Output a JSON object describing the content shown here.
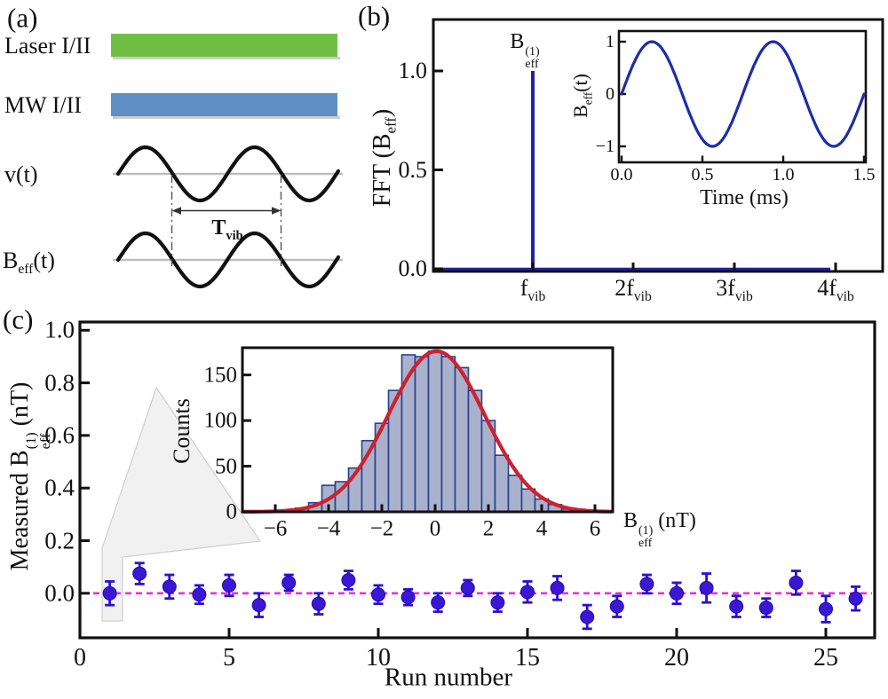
{
  "panel_a": {
    "label": "(a)",
    "rows": [
      {
        "label": "Laser I/II",
        "bar_color": "#6fbf45"
      },
      {
        "label": "MW I/II",
        "bar_color": "#5e8fc7"
      },
      {
        "label_parts": [
          {
            "t": "v(t)"
          }
        ]
      },
      {
        "label_parts": [
          {
            "t": "B"
          },
          {
            "sub": "eff"
          },
          {
            "t": "(t)"
          }
        ]
      }
    ],
    "period_label_parts": [
      {
        "t": "T"
      },
      {
        "sub": "vib"
      }
    ],
    "wave_color": "#111111",
    "baseline_color": "#bdbdbd"
  },
  "panel_b": {
    "label": "(b)",
    "ylabel_parts": [
      {
        "t": "FFT (B"
      },
      {
        "sub": "eff"
      },
      {
        "t": ")"
      }
    ],
    "ytick_labels": [
      "0.0",
      "0.5",
      "1.0"
    ],
    "peak_label_parts": [
      {
        "t": "B"
      },
      {
        "stack": {
          "sup": "(1)",
          "sub": "eff"
        }
      }
    ],
    "xtick_parts": [
      [
        {
          "t": "f"
        },
        {
          "sub": "vib"
        }
      ],
      [
        {
          "t": "2f"
        },
        {
          "sub": "vib"
        }
      ],
      [
        {
          "t": "3f"
        },
        {
          "sub": "vib"
        }
      ],
      [
        {
          "t": "4f"
        },
        {
          "sub": "vib"
        }
      ]
    ],
    "inset": {
      "ylabel_parts": [
        {
          "t": "B"
        },
        {
          "sub": "eff"
        },
        {
          "t": "(t)"
        }
      ],
      "ytick_labels": [
        "−1",
        "0",
        "1"
      ],
      "xtick_labels": [
        "0.0",
        "0.5",
        "1.0",
        "1.5"
      ],
      "xlabel": "Time (ms)"
    }
  },
  "panel_c": {
    "label": "(c)",
    "ylabel_parts": [
      {
        "t": "Measured B"
      },
      {
        "stack": {
          "sup": "(1)",
          "sub": "eff"
        }
      },
      {
        "t": " (nT)"
      }
    ],
    "ytick_labels": [
      "0.0",
      "0.2",
      "0.4",
      "0.6",
      "0.8",
      "1.0"
    ],
    "xtick_labels": [
      "0",
      "5",
      "10",
      "15",
      "20",
      "25"
    ],
    "xlabel": "Run number",
    "inset": {
      "ylabel": "Counts",
      "ytick_labels": [
        "0",
        "50",
        "100",
        "150"
      ],
      "xtick_labels": [
        "−6",
        "−4",
        "−2",
        "0",
        "2",
        "4",
        "6"
      ],
      "xlabel_parts": [
        {
          "t": "B"
        },
        {
          "stack": {
            "sup": "(1)",
            "sub": "eff"
          }
        },
        {
          "t": " (nT)"
        }
      ]
    }
  },
  "chart_data": [
    {
      "id": "fft-spectrum",
      "type": "line",
      "ylabel": "FFT (B_eff)",
      "yticks": [
        0.0,
        0.5,
        1.0
      ],
      "xtick_labels": [
        "f_vib",
        "2f_vib",
        "3f_vib",
        "4f_vib"
      ],
      "ylim": [
        0,
        1.25
      ],
      "series": [
        {
          "name": "FFT amplitude",
          "description": "flat baseline at 0 with a single sharp peak at f_vib",
          "peak_x": "f_vib",
          "peak_height": 1.0,
          "baseline": 0.0
        }
      ],
      "annotations": [
        "B_eff^(1) above the peak at f_vib"
      ],
      "line_color": "#2121aa"
    },
    {
      "id": "beff-time-inset",
      "type": "line",
      "xlabel": "Time (ms)",
      "ylabel": "B_eff(t)",
      "xticks": [
        0.0,
        0.5,
        1.0,
        1.5
      ],
      "yticks": [
        -1,
        0,
        1
      ],
      "xlim": [
        0,
        1.5
      ],
      "ylim": [
        -1.15,
        1.15
      ],
      "waveform": {
        "shape": "sine",
        "amplitude": 1,
        "period_ms": 0.75,
        "phase_deg": 0,
        "cycles_shown": 2
      },
      "line_color": "#1b2ea8"
    },
    {
      "id": "run-measurements",
      "type": "scatter",
      "xlabel": "Run number",
      "ylabel": "Measured B_eff^(1) (nT)",
      "xticks": [
        0,
        5,
        10,
        15,
        20,
        25
      ],
      "yticks": [
        0.0,
        0.2,
        0.4,
        0.6,
        0.8,
        1.0
      ],
      "xlim": [
        0,
        26.7
      ],
      "ylim": [
        -0.17,
        1.03
      ],
      "x": [
        1,
        2,
        3,
        4,
        5,
        6,
        7,
        8,
        9,
        10,
        11,
        12,
        13,
        14,
        15,
        16,
        17,
        18,
        19,
        20,
        21,
        22,
        23,
        24,
        25,
        26
      ],
      "y": [
        0.0,
        0.075,
        0.025,
        -0.005,
        0.03,
        -0.045,
        0.04,
        -0.04,
        0.05,
        -0.005,
        -0.015,
        -0.035,
        0.02,
        -0.035,
        0.005,
        0.02,
        -0.09,
        -0.05,
        0.035,
        0.0,
        0.02,
        -0.05,
        -0.055,
        0.04,
        -0.06,
        -0.02
      ],
      "yerr": [
        0.045,
        0.04,
        0.045,
        0.035,
        0.04,
        0.045,
        0.03,
        0.04,
        0.035,
        0.035,
        0.03,
        0.035,
        0.03,
        0.035,
        0.04,
        0.045,
        0.045,
        0.04,
        0.035,
        0.04,
        0.055,
        0.04,
        0.035,
        0.045,
        0.05,
        0.045
      ],
      "zero_line": {
        "y": 0.0,
        "style": "dashed",
        "color": "#ef2fd0"
      },
      "marker_color": "#3a17d2",
      "errorbar_color": "#2b0fd6"
    },
    {
      "id": "beff-histogram-inset",
      "type": "bar",
      "xlabel": "B_eff^(1) (nT)",
      "ylabel": "Counts",
      "xticks": [
        -6,
        -4,
        -2,
        0,
        2,
        4,
        6
      ],
      "yticks": [
        0,
        50,
        100,
        150
      ],
      "ylim": [
        0,
        180
      ],
      "bin_width": 0.5,
      "bin_centers": [
        -5.5,
        -5.0,
        -4.5,
        -4.0,
        -3.5,
        -3.0,
        -2.5,
        -2.0,
        -1.5,
        -1.0,
        -0.5,
        0.0,
        0.5,
        1.0,
        1.5,
        2.0,
        2.5,
        3.0,
        3.5,
        4.0,
        4.5,
        5.0,
        5.5
      ],
      "counts": [
        2,
        4,
        10,
        29,
        33,
        48,
        78,
        97,
        133,
        172,
        170,
        176,
        170,
        158,
        133,
        100,
        62,
        40,
        25,
        14,
        8,
        3,
        1
      ],
      "gaussian_fit": {
        "shape": "gaussian",
        "amplitude": 176,
        "mean": 0.05,
        "sigma": 1.8,
        "color": "#cf2030"
      },
      "bar_fill": "#a9b1cc",
      "bar_edge": "#27408b"
    }
  ]
}
